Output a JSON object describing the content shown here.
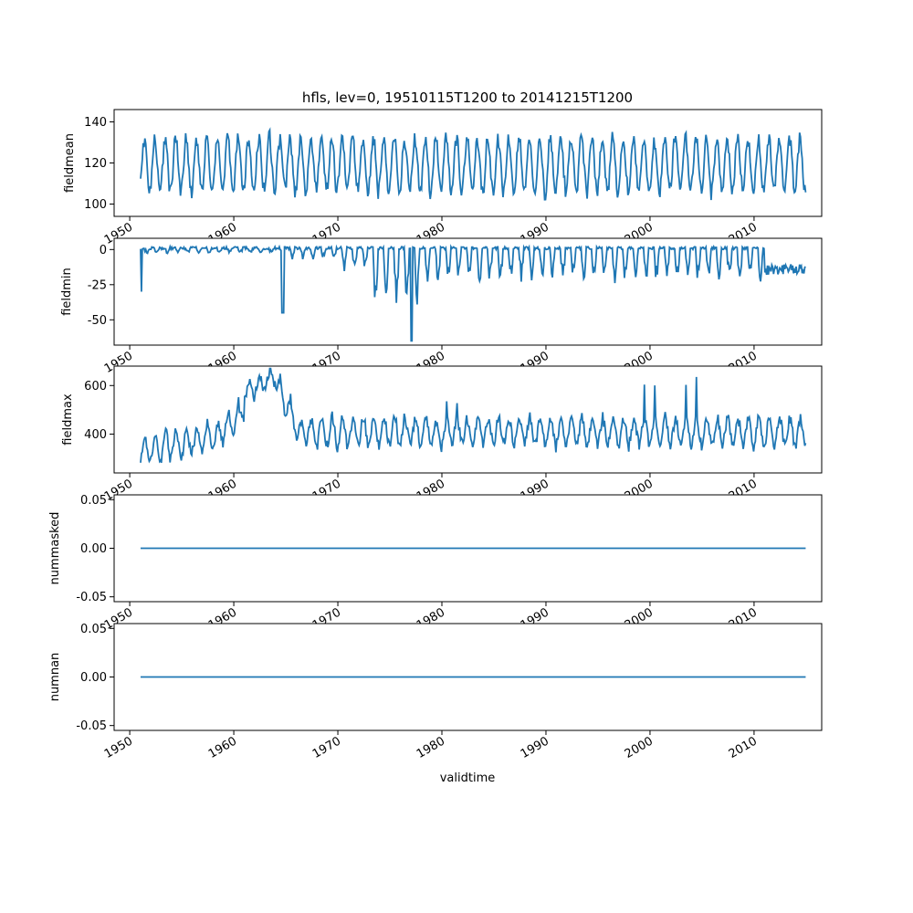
{
  "title": "hfls, lev=0, 19510115T1200 to 20141215T1200",
  "chart_data": {
    "type": "line",
    "start": "1951-01",
    "end": "2014-12",
    "xlim": [
      1948.5,
      2016.5
    ],
    "x_ticks": [
      1950,
      1960,
      1970,
      1980,
      1990,
      2000,
      2010
    ],
    "x_tick_labels": [
      "1950",
      "1960",
      "1970",
      "1980",
      "1990",
      "2000",
      "2010"
    ],
    "xlabel": "validtime",
    "grid": false,
    "color": "#1f77b4",
    "panels": [
      {
        "ylabel": "fieldmean",
        "ylim": [
          94,
          146
        ],
        "yticks": [
          100,
          120,
          140
        ],
        "ytick_labels": [
          "100",
          "120",
          "140"
        ],
        "pattern": "seasonal",
        "baseline": 119,
        "amplitude": 13,
        "noise": 3,
        "values": []
      },
      {
        "ylabel": "fieldmin",
        "ylim": [
          -68,
          8
        ],
        "yticks": [
          -50,
          -25,
          0
        ],
        "ytick_labels": [
          "-50",
          "-25",
          "0"
        ],
        "pattern": "negative_spikes",
        "min_value": -65,
        "max_value": 5,
        "values": []
      },
      {
        "ylabel": "fieldmax",
        "ylim": [
          240,
          680
        ],
        "yticks": [
          400,
          600
        ],
        "ytick_labels": [
          "400",
          "600"
        ],
        "pattern": "seasonal_with_bump",
        "baseline": 410,
        "amplitude": 55,
        "bump_peak": 670,
        "bump_year": 1962.5,
        "values": []
      },
      {
        "ylabel": "nummasked",
        "ylim": [
          -0.055,
          0.055
        ],
        "yticks": [
          -0.05,
          0.0,
          0.05
        ],
        "ytick_labels": [
          "-0.05",
          "0.00",
          "0.05"
        ],
        "pattern": "constant",
        "constant": 0,
        "values": []
      },
      {
        "ylabel": "numnan",
        "ylim": [
          -0.055,
          0.055
        ],
        "yticks": [
          -0.05,
          0.0,
          0.05
        ],
        "ytick_labels": [
          "-0.05",
          "0.00",
          "0.05"
        ],
        "pattern": "constant",
        "constant": 0,
        "values": []
      }
    ]
  }
}
